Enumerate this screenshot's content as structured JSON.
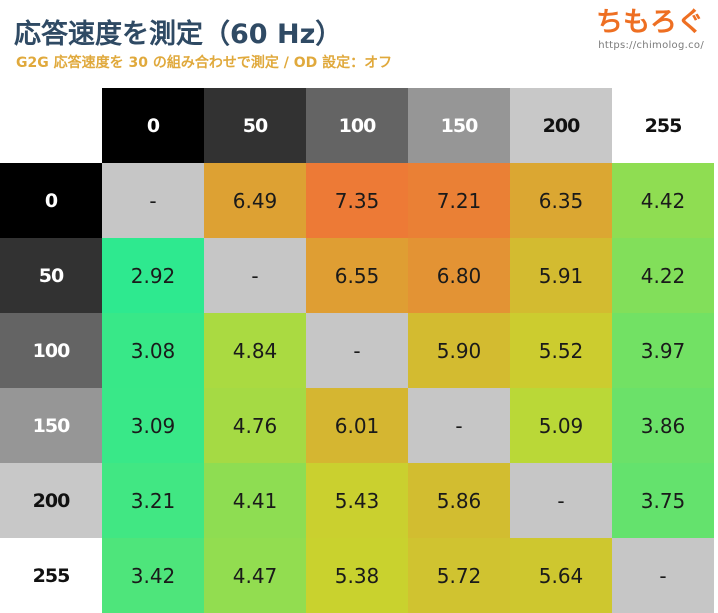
{
  "header": {
    "title": "応答速度を測定（60 Hz）",
    "subtitle": "G2G 応答速度を 30 の組み合わせで測定 / OD 設定：オフ",
    "logo_text": "ちもろぐ",
    "logo_url": "https://chimolog.co/"
  },
  "colors": {
    "cool": "#2ee98f",
    "mid": "#c8d62e",
    "hot": "#ed7a36",
    "no_value": "#c6c6c6"
  },
  "chart_data": {
    "type": "heatmap",
    "x_categories": [
      "0",
      "50",
      "100",
      "150",
      "200",
      "255"
    ],
    "y_categories": [
      "0",
      "50",
      "100",
      "150",
      "200",
      "255"
    ],
    "header_shades": [
      "#000000",
      "#323232",
      "#646464",
      "#969696",
      "#c8c8c8",
      "#ffffff"
    ],
    "values": [
      [
        "-",
        "6.49",
        "7.35",
        "7.21",
        "6.35",
        "4.42"
      ],
      [
        "2.92",
        "-",
        "6.55",
        "6.80",
        "5.91",
        "4.22"
      ],
      [
        "3.08",
        "4.84",
        "-",
        "5.90",
        "5.52",
        "3.97"
      ],
      [
        "3.09",
        "4.76",
        "6.01",
        "-",
        "5.09",
        "3.86"
      ],
      [
        "3.21",
        "4.41",
        "5.43",
        "5.86",
        "-",
        "3.75"
      ],
      [
        "3.42",
        "4.47",
        "5.38",
        "5.72",
        "5.64",
        "-"
      ]
    ]
  }
}
